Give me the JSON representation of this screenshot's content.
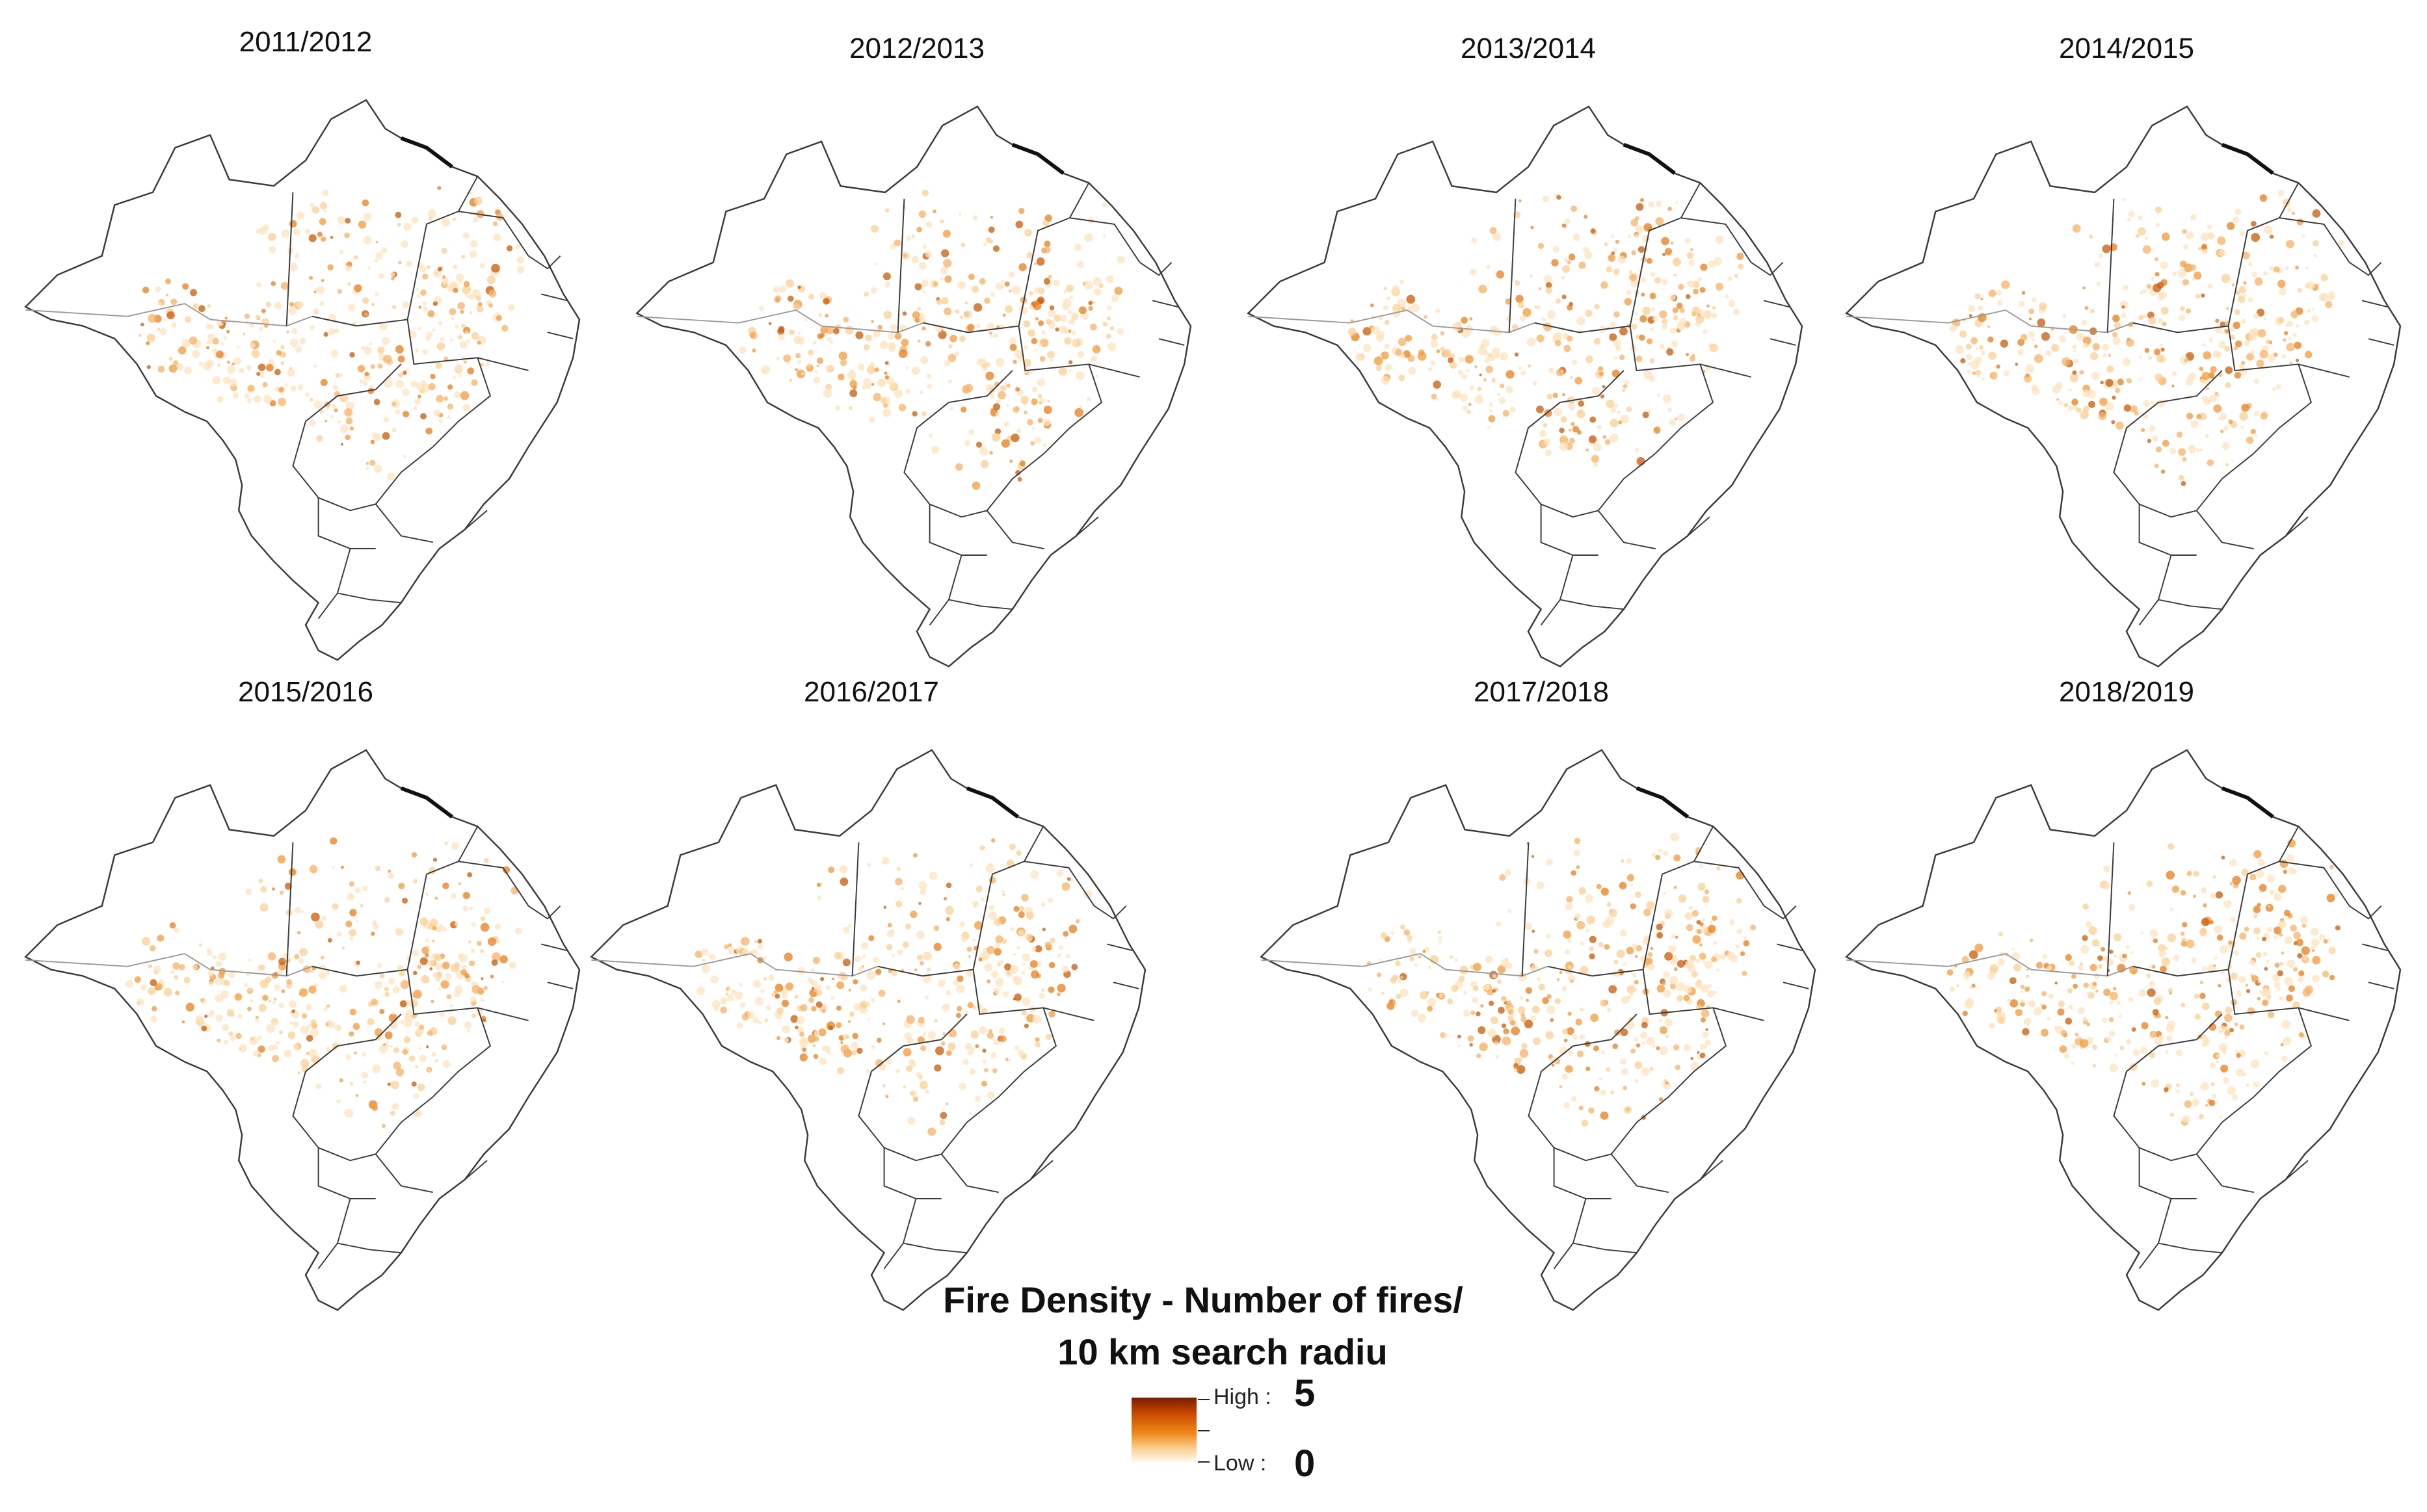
{
  "figure": {
    "panels": [
      {
        "title": "2011/2012"
      },
      {
        "title": "2012/2013"
      },
      {
        "title": "2013/2014"
      },
      {
        "title": "2014/2015"
      },
      {
        "title": "2015/2016"
      },
      {
        "title": "2016/2017"
      },
      {
        "title": "2017/2018"
      },
      {
        "title": "2018/2019"
      }
    ],
    "legend": {
      "title_line1": "Fire Density - Number of fires/",
      "title_line2": "10 km search radiu",
      "high_label": "High :",
      "low_label": "Low :",
      "high_value": "5",
      "low_value": "0",
      "colors": {
        "high": "#7a1d00",
        "mid": "#f08a1a",
        "low": "#fffaf3"
      }
    }
  }
}
